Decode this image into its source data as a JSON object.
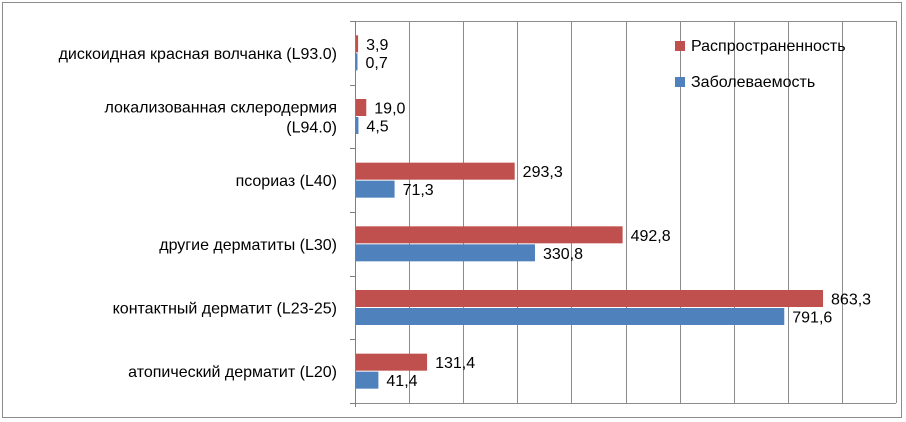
{
  "chart_data": {
    "type": "bar",
    "orientation": "horizontal",
    "categories": [
      [
        "дискоидная красная волчанка (L93.0)"
      ],
      [
        "локализованная склеродермия",
        "(L94.0)"
      ],
      [
        "псориаз (L40)"
      ],
      [
        "другие дерматиты (L30)"
      ],
      [
        "контактный дерматит (L23-25)"
      ],
      [
        "атопический дерматит (L20)"
      ]
    ],
    "series": [
      {
        "name": "Распространенность",
        "color": "#C0504D",
        "values": [
          3.9,
          19.0,
          293.3,
          492.8,
          863.3,
          131.4
        ],
        "labels": [
          "3,9",
          "19,0",
          "293,3",
          "492,8",
          "863,3",
          "131,4"
        ]
      },
      {
        "name": "Заболеваемость",
        "color": "#4F81BD",
        "values": [
          0.7,
          4.5,
          71.3,
          330.8,
          791.6,
          41.4
        ],
        "labels": [
          "0,7",
          "4,5",
          "71,3",
          "330,8",
          "791,6",
          "41,4"
        ]
      }
    ],
    "xlim": [
      0,
      1000
    ],
    "x_gridline_step": 100,
    "grid": true,
    "legend_position": "top-right",
    "axis_tick_labels_shown": false
  }
}
